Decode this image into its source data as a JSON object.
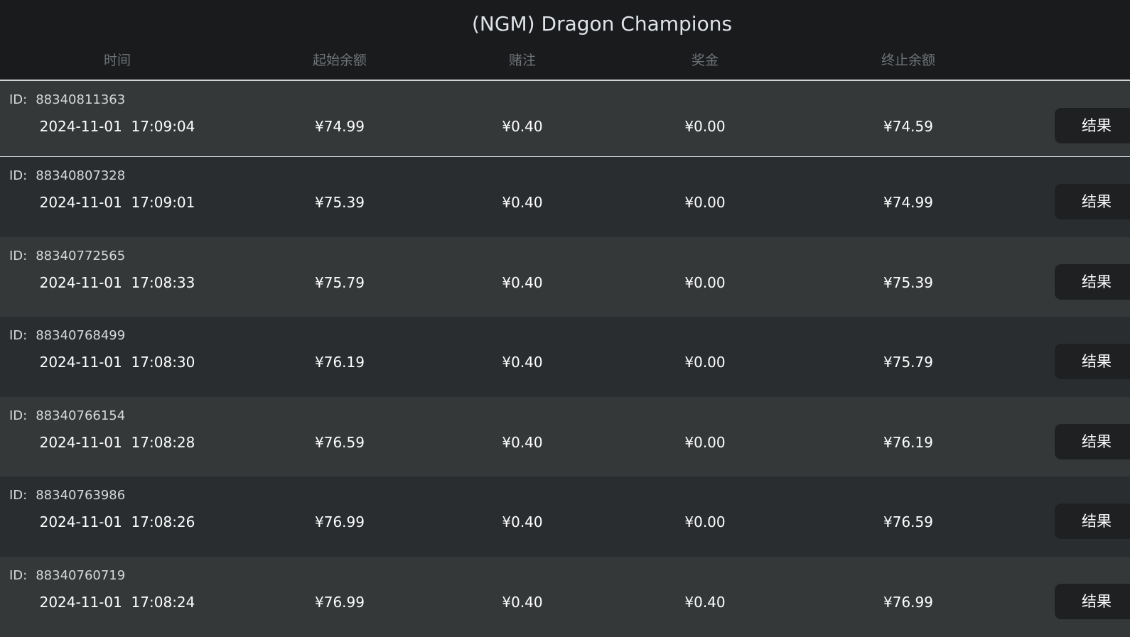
{
  "title": "(NGM) Dragon Champions",
  "columns": [
    "时间",
    "起始余额",
    "赌注",
    "奖金",
    "终止余额"
  ],
  "id_label": "ID:",
  "result_label": "结果",
  "rows": [
    {
      "id": "88340811363",
      "time": "2024-11-01  17:09:04",
      "start": "¥74.99",
      "bet": "¥0.40",
      "win": "¥0.00",
      "end": "¥74.59"
    },
    {
      "id": "88340807328",
      "time": "2024-11-01  17:09:01",
      "start": "¥75.39",
      "bet": "¥0.40",
      "win": "¥0.00",
      "end": "¥74.99"
    },
    {
      "id": "88340772565",
      "time": "2024-11-01  17:08:33",
      "start": "¥75.79",
      "bet": "¥0.40",
      "win": "¥0.00",
      "end": "¥75.39"
    },
    {
      "id": "88340768499",
      "time": "2024-11-01  17:08:30",
      "start": "¥76.19",
      "bet": "¥0.40",
      "win": "¥0.00",
      "end": "¥75.79"
    },
    {
      "id": "88340766154",
      "time": "2024-11-01  17:08:28",
      "start": "¥76.59",
      "bet": "¥0.40",
      "win": "¥0.00",
      "end": "¥76.19"
    },
    {
      "id": "88340763986",
      "time": "2024-11-01  17:08:26",
      "start": "¥76.99",
      "bet": "¥0.40",
      "win": "¥0.00",
      "end": "¥76.59"
    },
    {
      "id": "88340760719",
      "time": "2024-11-01  17:08:24",
      "start": "¥76.99",
      "bet": "¥0.40",
      "win": "¥0.40",
      "end": "¥76.99"
    }
  ]
}
